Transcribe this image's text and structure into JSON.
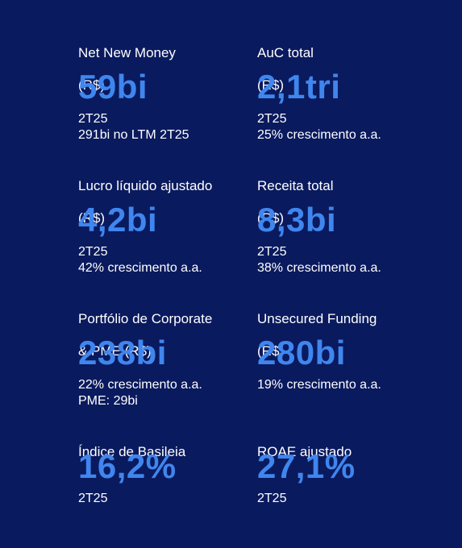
{
  "metrics": [
    {
      "label_line1": "Net New Money",
      "label_line2": "(R$)",
      "value": "59bi",
      "detail1": "2T25",
      "detail2": "291bi no LTM 2T25"
    },
    {
      "label_line1": "AuC total",
      "label_line2": "(R$)",
      "value": "2,1tri",
      "detail1": "2T25",
      "detail2": "25% crescimento a.a."
    },
    {
      "label_line1": "Lucro líquido ajustado",
      "label_line2": "(R$)",
      "value": "4,2bi",
      "detail1": "2T25",
      "detail2": "42% crescimento a.a."
    },
    {
      "label_line1": "Receita total",
      "label_line2": "(R$)",
      "value": "8,3bi",
      "detail1": "2T25",
      "detail2": "38% crescimento a.a."
    },
    {
      "label_line1": "Portfólio de Corporate",
      "label_line2": "& PME (R$)",
      "value": "238bi",
      "detail1": "22% crescimento a.a.",
      "detail2": "PME: 29bi"
    },
    {
      "label_line1": "Unsecured Funding",
      "label_line2": "(R$)",
      "value": "280bi",
      "detail1": "19% crescimento a.a.",
      "detail2": ""
    },
    {
      "label_line1": "Índice de Basileia",
      "label_line2": "",
      "value": "16,2%",
      "detail1": "2T25",
      "detail2": ""
    },
    {
      "label_line1": "ROAE ajustado",
      "label_line2": "",
      "value": "27,1%",
      "detail1": "2T25",
      "detail2": ""
    }
  ]
}
